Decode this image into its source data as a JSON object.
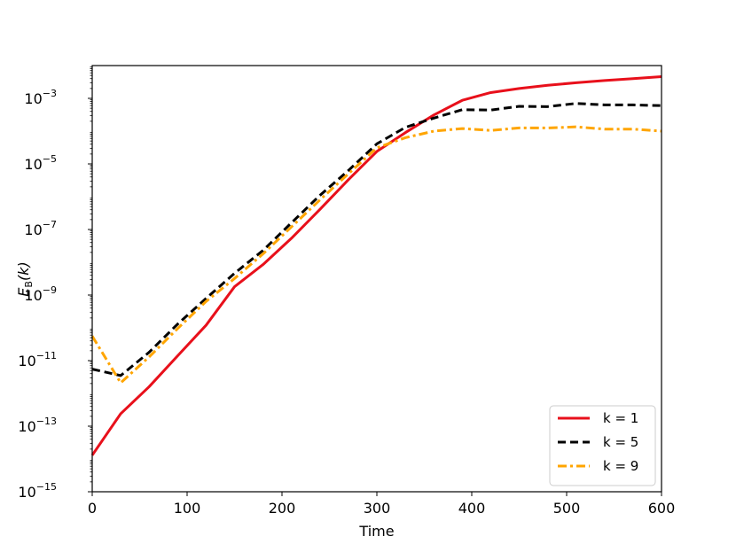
{
  "chart_data": {
    "type": "line",
    "xlabel": "Time",
    "ylabel": {
      "base": "E",
      "subscript": "B",
      "argument": "(k)"
    },
    "xlim": [
      0,
      600
    ],
    "ylim": [
      1e-15,
      0.01
    ],
    "yscale": "log",
    "grid": false,
    "legend_position": "bottom-right",
    "x_ticks": [
      {
        "value": 0,
        "label": "0"
      },
      {
        "value": 100,
        "label": "100"
      },
      {
        "value": 200,
        "label": "200"
      },
      {
        "value": 300,
        "label": "300"
      },
      {
        "value": 400,
        "label": "400"
      },
      {
        "value": 500,
        "label": "500"
      },
      {
        "value": 600,
        "label": "600"
      }
    ],
    "y_ticks": [
      {
        "exp": -15,
        "base": "10",
        "sup": "−15"
      },
      {
        "exp": -13,
        "base": "10",
        "sup": "−13"
      },
      {
        "exp": -11,
        "base": "10",
        "sup": "−11"
      },
      {
        "exp": -9,
        "base": "10",
        "sup": "−9"
      },
      {
        "exp": -7,
        "base": "10",
        "sup": "−7"
      },
      {
        "exp": -5,
        "base": "10",
        "sup": "−5"
      },
      {
        "exp": -3,
        "base": "10",
        "sup": "−3"
      }
    ],
    "x": [
      0,
      30,
      60,
      90,
      120,
      150,
      180,
      210,
      240,
      270,
      300,
      330,
      360,
      390,
      420,
      450,
      480,
      510,
      540,
      570,
      600
    ],
    "series": [
      {
        "name": "k = 1",
        "color": "#e8101b",
        "style": "solid",
        "values": [
          1.3e-14,
          2.4e-13,
          1.6e-12,
          1.4e-11,
          1.2e-10,
          1.8e-09,
          8.5e-09,
          5.4e-08,
          4.1e-07,
          3.3e-06,
          2.4e-05,
          9e-05,
          0.00031,
          0.00087,
          0.0015,
          0.002,
          0.0025,
          0.003,
          0.0035,
          0.004,
          0.0046
        ]
      },
      {
        "name": "k = 5",
        "color": "#000000",
        "style": "dashed",
        "values": [
          5.5e-12,
          3.5e-12,
          1.8e-11,
          1.3e-10,
          7.9e-10,
          4.6e-09,
          2.3e-08,
          1.6e-07,
          1.1e-06,
          6.3e-06,
          4.1e-05,
          0.00013,
          0.00025,
          0.00045,
          0.00044,
          0.00057,
          0.00056,
          0.0007,
          0.00063,
          0.00063,
          0.0006
        ]
      },
      {
        "name": "k = 9",
        "color": "#ffa500",
        "style": "dashdot",
        "values": [
          5.6e-11,
          2.1e-12,
          1.3e-11,
          9.5e-11,
          6.4e-10,
          3.2e-09,
          1.8e-08,
          1.2e-07,
          8e-07,
          5e-06,
          3.1e-05,
          6.3e-05,
          0.0001,
          0.00012,
          0.000105,
          0.000125,
          0.000125,
          0.000135,
          0.000115,
          0.000115,
          0.0001
        ]
      }
    ]
  }
}
